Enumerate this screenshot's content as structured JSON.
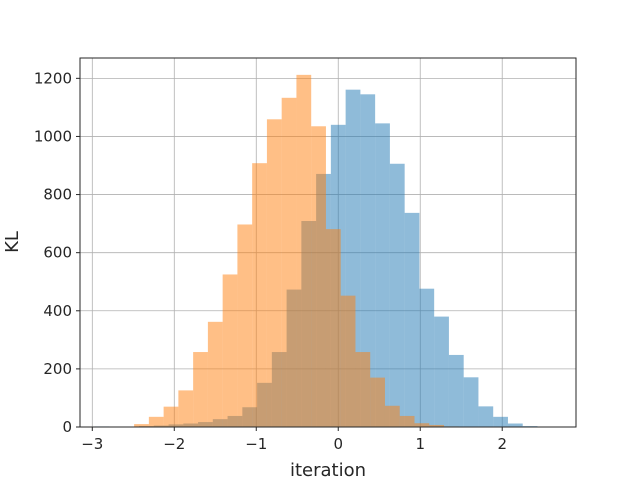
{
  "chart_data": {
    "type": "bar",
    "title": "",
    "xlabel": "iteration",
    "ylabel": "KL",
    "xlim": [
      -3.15,
      2.9
    ],
    "ylim": [
      0,
      1270
    ],
    "xticks": [
      -3,
      -2,
      -1,
      0,
      1,
      2
    ],
    "yticks": [
      0,
      200,
      400,
      600,
      800,
      1000,
      1200
    ],
    "grid": true,
    "bin_width": 0.18,
    "series": [
      {
        "color": "#1f77b4",
        "alpha": 0.5,
        "bin_start": -2.97,
        "counts": [
          2,
          0,
          1,
          3,
          5,
          9,
          12,
          17,
          27,
          38,
          68,
          152,
          258,
          473,
          709,
          871,
          1040,
          1161,
          1145,
          1045,
          906,
          737,
          476,
          380,
          248,
          171,
          71,
          35,
          12,
          3
        ]
      },
      {
        "color": "#ff7f0e",
        "alpha": 0.5,
        "bin_start": -2.49,
        "counts": [
          10,
          35,
          70,
          126,
          258,
          362,
          525,
          697,
          908,
          1059,
          1133,
          1212,
          1035,
          681,
          452,
          258,
          170,
          73,
          38,
          13,
          7,
          2
        ]
      }
    ]
  }
}
